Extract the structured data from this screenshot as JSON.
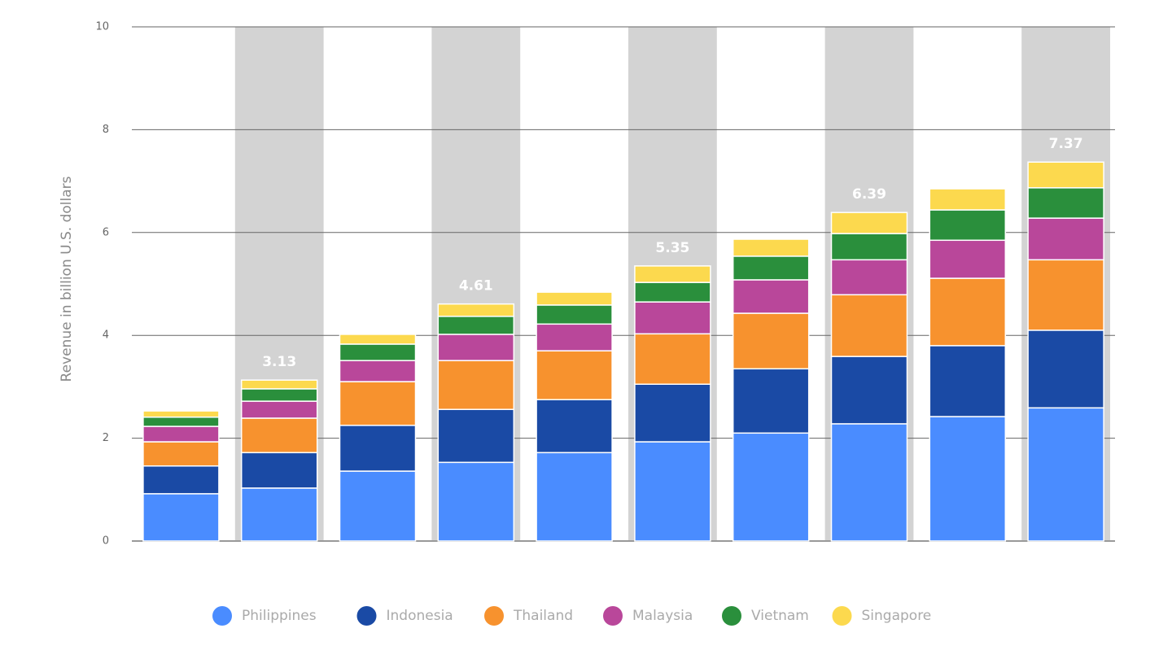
{
  "chart_data": {
    "type": "stacked-bar",
    "y_label": "Revenue in billion U.S. dollars",
    "categories": [
      null,
      null,
      null,
      null,
      null,
      null,
      null,
      null,
      null,
      null
    ],
    "series": [
      {
        "name": "Philippines",
        "color": "#4a8cff",
        "values": [
          0.92,
          1.03,
          1.36,
          1.53,
          1.72,
          1.93,
          2.1,
          2.28,
          2.42,
          2.59
        ]
      },
      {
        "name": "Indonesia",
        "color": "#1a4aa5",
        "values": [
          0.54,
          0.69,
          0.89,
          1.03,
          1.03,
          1.12,
          1.25,
          1.31,
          1.38,
          1.51
        ]
      },
      {
        "name": "Thailand",
        "color": "#f7922e",
        "values": [
          0.47,
          0.67,
          0.85,
          0.95,
          0.95,
          0.98,
          1.08,
          1.2,
          1.31,
          1.37
        ]
      },
      {
        "name": "Malaysia",
        "color": "#b9479a",
        "values": [
          0.3,
          0.33,
          0.41,
          0.51,
          0.52,
          0.62,
          0.65,
          0.68,
          0.74,
          0.81
        ]
      },
      {
        "name": "Vietnam",
        "color": "#2a8f3c",
        "values": [
          0.18,
          0.24,
          0.32,
          0.35,
          0.37,
          0.38,
          0.46,
          0.51,
          0.59,
          0.59
        ]
      },
      {
        "name": "Singapore",
        "color": "#fcd94e",
        "values": [
          0.12,
          0.17,
          0.19,
          0.24,
          0.25,
          0.32,
          0.33,
          0.41,
          0.41,
          0.5
        ]
      }
    ],
    "totals": [
      null,
      3.13,
      null,
      4.61,
      null,
      5.35,
      null,
      6.39,
      null,
      7.37
    ],
    "ylim": [
      0,
      10
    ],
    "yticks": [
      0,
      2,
      4,
      6,
      8,
      10
    ],
    "grid": true
  }
}
